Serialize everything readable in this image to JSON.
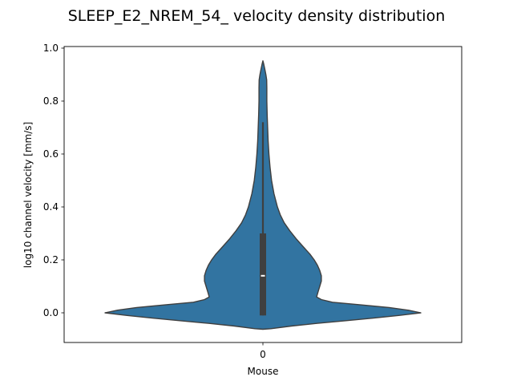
{
  "chart_data": {
    "type": "violin",
    "title": "SLEEP_E2_NREM_54_ velocity density distribution",
    "xlabel": "Mouse",
    "ylabel": "log10 channel velocity [mm/s]",
    "categories": [
      "0"
    ],
    "ylim": [
      -0.11,
      1.0
    ],
    "yticks": [
      "0.0",
      "0.2",
      "0.4",
      "0.6",
      "0.8",
      "1.0"
    ],
    "grid": false,
    "colors": {
      "violin": "#3274a1",
      "outline": "#3f3f3f",
      "box": "#3f3f3f",
      "median": "#ffffff"
    },
    "summary": {
      "median": 0.14,
      "q1": -0.01,
      "q3": 0.3,
      "whisker_low": -0.01,
      "whisker_high": 0.72
    },
    "density_profile": [
      {
        "y": -0.062,
        "half_width": 0.0
      },
      {
        "y": -0.06,
        "half_width": 0.05
      },
      {
        "y": -0.05,
        "half_width": 0.18
      },
      {
        "y": -0.04,
        "half_width": 0.34
      },
      {
        "y": -0.03,
        "half_width": 0.52
      },
      {
        "y": -0.02,
        "half_width": 0.7
      },
      {
        "y": -0.01,
        "half_width": 0.86
      },
      {
        "y": 0.0,
        "half_width": 1.0
      },
      {
        "y": 0.01,
        "half_width": 0.92
      },
      {
        "y": 0.02,
        "half_width": 0.8
      },
      {
        "y": 0.03,
        "half_width": 0.62
      },
      {
        "y": 0.04,
        "half_width": 0.44
      },
      {
        "y": 0.05,
        "half_width": 0.37
      },
      {
        "y": 0.06,
        "half_width": 0.34
      },
      {
        "y": 0.08,
        "half_width": 0.35
      },
      {
        "y": 0.1,
        "half_width": 0.36
      },
      {
        "y": 0.12,
        "half_width": 0.37
      },
      {
        "y": 0.14,
        "half_width": 0.37
      },
      {
        "y": 0.16,
        "half_width": 0.36
      },
      {
        "y": 0.18,
        "half_width": 0.345
      },
      {
        "y": 0.2,
        "half_width": 0.325
      },
      {
        "y": 0.22,
        "half_width": 0.3
      },
      {
        "y": 0.25,
        "half_width": 0.255
      },
      {
        "y": 0.28,
        "half_width": 0.21
      },
      {
        "y": 0.31,
        "half_width": 0.17
      },
      {
        "y": 0.34,
        "half_width": 0.135
      },
      {
        "y": 0.37,
        "half_width": 0.11
      },
      {
        "y": 0.4,
        "half_width": 0.092
      },
      {
        "y": 0.45,
        "half_width": 0.07
      },
      {
        "y": 0.5,
        "half_width": 0.055
      },
      {
        "y": 0.55,
        "half_width": 0.045
      },
      {
        "y": 0.6,
        "half_width": 0.038
      },
      {
        "y": 0.65,
        "half_width": 0.033
      },
      {
        "y": 0.7,
        "half_width": 0.03
      },
      {
        "y": 0.75,
        "half_width": 0.027
      },
      {
        "y": 0.8,
        "half_width": 0.025
      },
      {
        "y": 0.85,
        "half_width": 0.025
      },
      {
        "y": 0.88,
        "half_width": 0.024
      },
      {
        "y": 0.9,
        "half_width": 0.019
      },
      {
        "y": 0.92,
        "half_width": 0.012
      },
      {
        "y": 0.94,
        "half_width": 0.005
      },
      {
        "y": 0.952,
        "half_width": 0.0
      }
    ]
  }
}
